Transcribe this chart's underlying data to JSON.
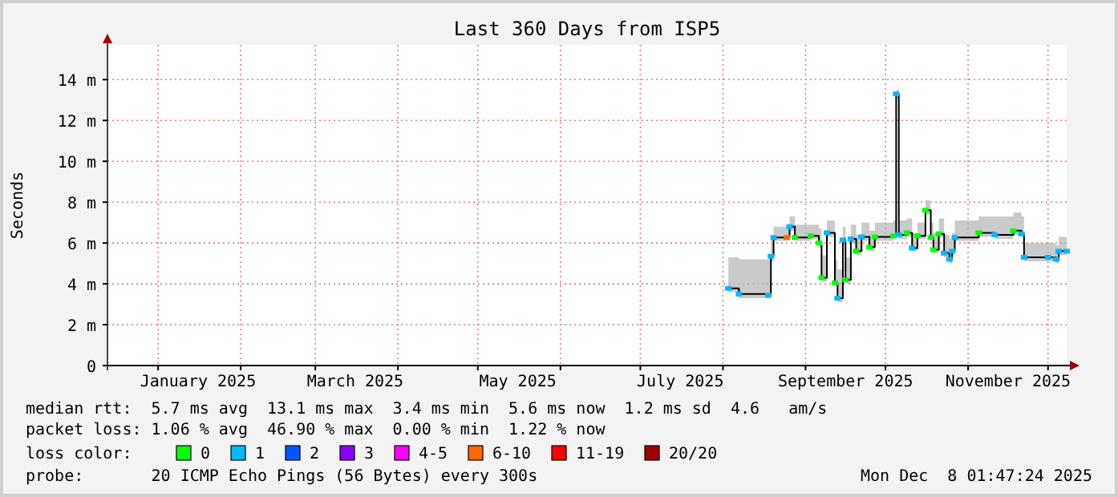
{
  "chart_data": {
    "type": "line",
    "title": "Last 360 Days from ISP5",
    "ylabel": "Seconds",
    "x": [
      "2025-08-03",
      "2025-08-07",
      "2025-08-18",
      "2025-08-19",
      "2025-08-20",
      "2025-08-25",
      "2025-08-26",
      "2025-08-28",
      "2025-09-03",
      "2025-09-06",
      "2025-09-07",
      "2025-09-09",
      "2025-09-12",
      "2025-09-13",
      "2025-09-15",
      "2025-09-16",
      "2025-09-18",
      "2025-09-20",
      "2025-09-22",
      "2025-09-25",
      "2025-09-27",
      "2025-10-04",
      "2025-10-05",
      "2025-10-06",
      "2025-10-09",
      "2025-10-11",
      "2025-10-13",
      "2025-10-16",
      "2025-10-18",
      "2025-10-19",
      "2025-10-21",
      "2025-10-23",
      "2025-10-25",
      "2025-10-26",
      "2025-10-27",
      "2025-11-05",
      "2025-11-11",
      "2025-11-18",
      "2025-11-21",
      "2025-11-22",
      "2025-12-01",
      "2025-12-04",
      "2025-12-05",
      "2025-12-08"
    ],
    "series": [
      {
        "color": "#000000",
        "marker": "none",
        "values": [
          3.78,
          3.5,
          3.44,
          5.35,
          6.27,
          6.27,
          6.8,
          6.27,
          6.35,
          6.0,
          4.3,
          6.5,
          4.05,
          3.3,
          6.15,
          4.2,
          6.2,
          5.6,
          6.3,
          5.8,
          6.3,
          6.35,
          13.3,
          6.4,
          6.5,
          5.75,
          6.35,
          7.6,
          6.27,
          5.67,
          6.45,
          5.5,
          5.2,
          5.6,
          6.27,
          6.5,
          6.4,
          6.6,
          6.45,
          5.3,
          5.3,
          5.2,
          5.6,
          5.6
        ],
        "lower": [
          3.6,
          3.3,
          3.3,
          5.1,
          6.1,
          6.1,
          6.6,
          6.1,
          6.2,
          5.8,
          4.1,
          6.3,
          3.9,
          3.1,
          6.0,
          4.0,
          6.0,
          5.4,
          6.1,
          5.6,
          6.1,
          6.2,
          13.1,
          6.2,
          6.3,
          5.6,
          6.2,
          7.4,
          6.1,
          5.5,
          6.3,
          5.3,
          5.0,
          5.4,
          6.1,
          6.3,
          6.2,
          6.4,
          6.3,
          5.1,
          5.1,
          5.0,
          5.4,
          5.4
        ],
        "upper": [
          5.3,
          5.2,
          5.2,
          6.2,
          6.8,
          6.9,
          7.3,
          6.9,
          6.9,
          6.7,
          5.4,
          7.1,
          5.2,
          4.7,
          6.8,
          5.3,
          6.9,
          6.4,
          7.0,
          6.6,
          7.0,
          7.1,
          13.5,
          7.1,
          7.2,
          6.5,
          7.0,
          8.1,
          7.0,
          6.5,
          7.2,
          6.4,
          6.2,
          6.5,
          7.1,
          7.3,
          7.3,
          7.5,
          7.3,
          6.0,
          6.0,
          5.9,
          6.3,
          6.3
        ]
      },
      {
        "type": "scatter",
        "name": "0",
        "color": "#00ff00",
        "x": [
          "2025-08-28",
          "2025-09-03",
          "2025-09-06",
          "2025-09-07",
          "2025-09-12",
          "2025-09-16",
          "2025-09-20",
          "2025-09-25",
          "2025-09-27",
          "2025-10-04",
          "2025-10-09",
          "2025-10-13",
          "2025-10-16",
          "2025-10-18",
          "2025-10-19",
          "2025-10-21",
          "2025-11-05",
          "2025-11-18"
        ],
        "values": [
          6.27,
          6.35,
          6.0,
          4.3,
          4.05,
          4.2,
          5.6,
          5.8,
          6.3,
          6.35,
          6.5,
          6.35,
          7.6,
          6.27,
          5.67,
          6.45,
          6.5,
          6.6
        ]
      },
      {
        "type": "scatter",
        "name": "1",
        "color": "#00b8ff",
        "x": [
          "2025-08-03",
          "2025-08-07",
          "2025-08-18",
          "2025-08-19",
          "2025-08-20",
          "2025-08-26",
          "2025-09-09",
          "2025-09-13",
          "2025-09-15",
          "2025-09-18",
          "2025-09-22",
          "2025-10-05",
          "2025-10-06",
          "2025-10-11",
          "2025-10-23",
          "2025-10-25",
          "2025-10-26",
          "2025-10-27",
          "2025-11-11",
          "2025-11-21",
          "2025-11-22",
          "2025-12-01",
          "2025-12-04",
          "2025-12-05",
          "2025-12-08"
        ],
        "values": [
          3.78,
          3.5,
          3.44,
          5.35,
          6.27,
          6.8,
          6.5,
          3.3,
          6.15,
          6.2,
          6.3,
          13.3,
          6.4,
          5.75,
          5.5,
          5.2,
          5.6,
          6.27,
          6.4,
          6.45,
          5.3,
          5.3,
          5.2,
          5.6,
          5.6
        ]
      },
      {
        "type": "scatter",
        "name": "2",
        "color": "#0059ff",
        "values": [
          null,
          null,
          null,
          null,
          null,
          null,
          null,
          null,
          null,
          null,
          null,
          null,
          null,
          null,
          null,
          null,
          null,
          null,
          null,
          null,
          null,
          null,
          null,
          null,
          null,
          null,
          null,
          null,
          null,
          null,
          null,
          null,
          null,
          null,
          null,
          null,
          null,
          null,
          null,
          null,
          null,
          null,
          null,
          null
        ]
      },
      {
        "type": "scatter",
        "name": "3",
        "color": "#8a00ff",
        "values": [
          null,
          null,
          null,
          null,
          null,
          null,
          null,
          null,
          null,
          null,
          null,
          null,
          null,
          null,
          null,
          null,
          null,
          null,
          null,
          null,
          null,
          null,
          null,
          null,
          null,
          null,
          null,
          null,
          null,
          null,
          null,
          null,
          null,
          null,
          null,
          null,
          null,
          null,
          null,
          null,
          null,
          null,
          null,
          null
        ]
      },
      {
        "type": "scatter",
        "name": "4-5",
        "color": "#ff00ff",
        "values": [
          null,
          null,
          null,
          null,
          null,
          null,
          null,
          null,
          null,
          null,
          null,
          null,
          null,
          null,
          null,
          null,
          null,
          null,
          null,
          null,
          null,
          null,
          null,
          null,
          null,
          null,
          null,
          null,
          null,
          null,
          null,
          null,
          null,
          null,
          null,
          null,
          null,
          null,
          null,
          null,
          null,
          null,
          null,
          null
        ]
      },
      {
        "type": "scatter",
        "name": "6-10",
        "color": "#ff6600",
        "x": [
          "2025-08-25"
        ],
        "values": [
          6.27
        ]
      },
      {
        "type": "scatter",
        "name": "11-19",
        "color": "#ff0000",
        "values": [
          null,
          null,
          null,
          null,
          null,
          null,
          null,
          null,
          null,
          null,
          null,
          null,
          null,
          null,
          null,
          null,
          null,
          null,
          null,
          null,
          null,
          null,
          null,
          null,
          null,
          null,
          null,
          null,
          null,
          null,
          null,
          null,
          null,
          null,
          null,
          null,
          null,
          null,
          null,
          null,
          null,
          null,
          null,
          null
        ]
      },
      {
        "type": "scatter",
        "name": "20/20",
        "color": "#a00000",
        "values": [
          null,
          null,
          null,
          null,
          null,
          null,
          null,
          null,
          null,
          null,
          null,
          null,
          null,
          null,
          null,
          null,
          null,
          null,
          null,
          null,
          null,
          null,
          null,
          null,
          null,
          null,
          null,
          null,
          null,
          null,
          null,
          null,
          null,
          null,
          null,
          null,
          null,
          null,
          null,
          null,
          null,
          null,
          null,
          null
        ]
      }
    ],
    "xlim": [
      "2024-12-13",
      "2025-12-08"
    ],
    "xticks": [
      {
        "value": "2025-01-01",
        "label": null
      },
      {
        "value": "2025-01-16",
        "label": "January 2025"
      },
      {
        "value": "2025-02-01",
        "label": null
      },
      {
        "value": "2025-03-01",
        "label": null
      },
      {
        "value": "2025-03-16",
        "label": "March 2025"
      },
      {
        "value": "2025-04-01",
        "label": null
      },
      {
        "value": "2025-05-01",
        "label": null
      },
      {
        "value": "2025-05-16",
        "label": "May 2025"
      },
      {
        "value": "2025-06-01",
        "label": null
      },
      {
        "value": "2025-07-01",
        "label": null
      },
      {
        "value": "2025-07-16",
        "label": "July 2025"
      },
      {
        "value": "2025-08-01",
        "label": null
      },
      {
        "value": "2025-09-01",
        "label": null
      },
      {
        "value": "2025-09-16",
        "label": "September 2025"
      },
      {
        "value": "2025-10-01",
        "label": null
      },
      {
        "value": "2025-11-01",
        "label": null
      },
      {
        "value": "2025-11-16",
        "label": "November 2025"
      },
      {
        "value": "2025-12-01",
        "label": null
      }
    ],
    "ylim": [
      0,
      15.7
    ],
    "yticks": [
      0,
      {
        "value": 2,
        "label": "2 m"
      },
      {
        "value": 4,
        "label": "4 m"
      },
      {
        "value": 6,
        "label": "6 m"
      },
      {
        "value": 8,
        "label": "8 m"
      },
      {
        "value": 10,
        "label": "10 m"
      },
      {
        "value": 12,
        "label": "12 m"
      },
      {
        "value": 14,
        "label": "14 m"
      }
    ],
    "grid": true,
    "marker": "square",
    "line_style": "solid",
    "legend": "bottom",
    "legend_title": "loss color:",
    "annotations": [
      "median rtt:  5.7 ms avg  13.1 ms max  3.4 ms min  5.6 ms now  1.2 ms sd  4.6   am/s",
      "packet loss: 1.06 % avg  46.90 % max  0.00 % min  1.22 % now",
      "probe:       20 ICMP Echo Pings (56 Bytes) every 300s",
      "Mon Dec  8 01:47:24 2025"
    ]
  }
}
